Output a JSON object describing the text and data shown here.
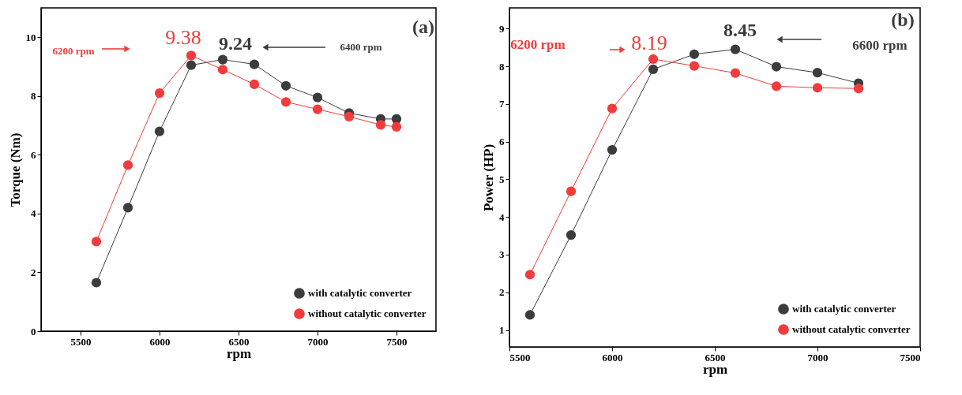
{
  "chart_data": [
    {
      "type": "line",
      "xlabel": "rpm",
      "ylabel": "Torque (Nm)",
      "x": [
        5600,
        5800,
        6000,
        6200,
        6400,
        6600,
        6800,
        7000,
        7200,
        7400,
        7500
      ],
      "series": [
        {
          "name": "with catalytic converter",
          "color": "#3c3c3c",
          "values": [
            1.65,
            4.2,
            6.8,
            9.05,
            9.24,
            9.08,
            8.35,
            7.95,
            7.42,
            7.22,
            7.22
          ]
        },
        {
          "name": "without catalytic converter",
          "color": "#f03c3c",
          "values": [
            3.05,
            5.65,
            8.1,
            9.38,
            8.9,
            8.4,
            7.8,
            7.55,
            7.3,
            7.02,
            6.95
          ]
        }
      ],
      "xlim": [
        5250,
        7750
      ],
      "ylim": [
        0,
        11
      ],
      "xticks": [
        5500,
        6000,
        6500,
        7000,
        7500
      ],
      "yticks": [
        0,
        2,
        4,
        6,
        8,
        10
      ],
      "grid": false,
      "legend": "bottom right",
      "marker": "circle",
      "annotations": [
        "6200 rpm",
        {
          "text": "9.38",
          "x": 6200,
          "y": 9.38
        },
        {
          "text": "9.24",
          "x": 6400,
          "y": 9.24
        },
        "6400 rpm",
        "(a)"
      ]
    },
    {
      "type": "line",
      "xlabel": "rpm",
      "ylabel": "Power (HP)",
      "x": [
        5600,
        5800,
        6000,
        6200,
        6400,
        6600,
        6800,
        7000,
        7200
      ],
      "series": [
        {
          "name": "with catalytic converter",
          "color": "#3c3c3c",
          "values": [
            1.4,
            3.52,
            5.78,
            7.92,
            8.32,
            8.45,
            7.99,
            7.83,
            7.55
          ]
        },
        {
          "name": "without catalytic converter",
          "color": "#f03c3c",
          "values": [
            2.47,
            4.68,
            6.88,
            8.19,
            8.01,
            7.82,
            7.47,
            7.43,
            7.41
          ]
        }
      ],
      "xlim": [
        5500,
        7500
      ],
      "ylim": [
        0.55,
        9.55
      ],
      "xticks": [
        5500,
        6000,
        6500,
        7000,
        7500
      ],
      "yticks": [
        1,
        2,
        3,
        4,
        5,
        6,
        7,
        8,
        9
      ],
      "grid": false,
      "legend": "bottom right",
      "marker": "circle",
      "annotations": [
        "6200 rpm",
        {
          "text": "8.19",
          "x": 6200,
          "y": 8.19
        },
        {
          "text": "8.45",
          "x": 6600,
          "y": 8.45
        },
        "6600 rpm",
        "(b)"
      ]
    }
  ]
}
